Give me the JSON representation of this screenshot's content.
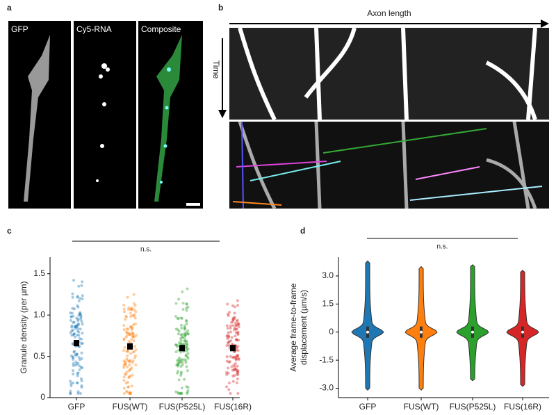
{
  "figure": {
    "panels": [
      "a",
      "b",
      "c",
      "d"
    ],
    "images": [
      "GFP",
      "Cy5-RNA",
      "Composite"
    ],
    "kymo_x_label": "Axon length",
    "kymo_y_label": "Time"
  },
  "chart_data": [
    {
      "type": "strip",
      "ylabel": "Granule density (per µm)",
      "categories": [
        "GFP",
        "FUS(WT)",
        "FUS(P525L)",
        "FUS(16R)"
      ],
      "colors": [
        "#1f77b4",
        "#ff7f0e",
        "#2ca02c",
        "#d62728"
      ],
      "values": [
        0.66,
        0.62,
        0.6,
        0.6
      ],
      "errors": [
        0.03,
        0.03,
        0.03,
        0.03
      ],
      "ylim": [
        0,
        1.7
      ],
      "yticks": [
        0,
        {
          "value": 0.5,
          "label": "0.5"
        },
        {
          "value": 1,
          "label": "1.0"
        },
        {
          "value": 1.5,
          "label": "1.5"
        }
      ],
      "annotation": "n.s."
    },
    {
      "type": "violin",
      "ylabel": "Average frame-to-frame displacement (µm/s)",
      "categories": [
        "GFP",
        "FUS(WT)",
        "FUS(P525L)",
        "FUS(16R)"
      ],
      "colors": [
        "#1f77b4",
        "#ff7f0e",
        "#2ca02c",
        "#d62728"
      ],
      "medians": [
        0,
        0,
        0,
        0
      ],
      "mins": [
        -3.1,
        -3.1,
        -2.6,
        -2.9
      ],
      "maxs": [
        3.8,
        3.5,
        3.6,
        3.3
      ],
      "ylim": [
        -3.5,
        4.0
      ],
      "yticks": [
        {
          "value": -3,
          "label": "-3.0"
        },
        {
          "value": -1.5,
          "label": "-1.5"
        },
        0,
        {
          "value": 1.5,
          "label": "1.5"
        },
        {
          "value": 3,
          "label": "3.0"
        }
      ],
      "annotation": "n.s."
    }
  ]
}
